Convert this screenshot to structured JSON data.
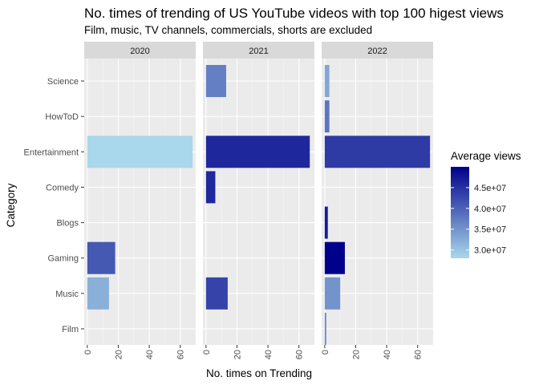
{
  "chart_data": {
    "type": "bar",
    "orientation": "horizontal",
    "title": "No. times of trending of US YouTube videos with top 100 higest views",
    "subtitle": "Film, music, TV channels, commercials, shorts are excluded",
    "xlabel": "No. times on Trending",
    "ylabel": "Category",
    "categories": [
      "Science",
      "HowToD",
      "Entertainment",
      "Comedy",
      "Blogs",
      "Gaming",
      "Music",
      "Film"
    ],
    "xlim": [
      -2,
      70
    ],
    "xticks": [
      0,
      20,
      40,
      60
    ],
    "facets": [
      {
        "label": "2020",
        "bars": [
          {
            "category": "Entertainment",
            "value": 68,
            "avg_views": 28000000
          },
          {
            "category": "Gaming",
            "value": 18,
            "avg_views": 41000000
          },
          {
            "category": "Music",
            "value": 14,
            "avg_views": 32000000
          }
        ]
      },
      {
        "label": "2021",
        "bars": [
          {
            "category": "Science",
            "value": 13,
            "avg_views": 37000000
          },
          {
            "category": "Entertainment",
            "value": 67,
            "avg_views": 46000000
          },
          {
            "category": "Comedy",
            "value": 6,
            "avg_views": 46000000
          },
          {
            "category": "Music",
            "value": 14,
            "avg_views": 43000000
          }
        ]
      },
      {
        "label": "2022",
        "bars": [
          {
            "category": "Science",
            "value": 3,
            "avg_views": 33000000
          },
          {
            "category": "HowToD",
            "value": 3,
            "avg_views": 38000000
          },
          {
            "category": "Entertainment",
            "value": 68,
            "avg_views": 44000000
          },
          {
            "category": "Blogs",
            "value": 2,
            "avg_views": 47000000
          },
          {
            "category": "Gaming",
            "value": 13,
            "avg_views": 50000000
          },
          {
            "category": "Music",
            "value": 10,
            "avg_views": 35000000
          },
          {
            "category": "Film",
            "value": 1,
            "avg_views": 36000000
          }
        ]
      }
    ],
    "legend": {
      "title": "Average views",
      "position": "right",
      "range": [
        28000000,
        50000000
      ],
      "low_color": "#a9d7eb",
      "high_color": "#00008b",
      "ticks": [
        {
          "value": 30000000,
          "label": "3.0e+07"
        },
        {
          "value": 35000000,
          "label": "3.5e+07"
        },
        {
          "value": 40000000,
          "label": "4.0e+07"
        },
        {
          "value": 45000000,
          "label": "4.5e+07"
        }
      ]
    },
    "grid": true,
    "panel_background": "#ebebeb",
    "strip_background": "#d9d9d9"
  }
}
